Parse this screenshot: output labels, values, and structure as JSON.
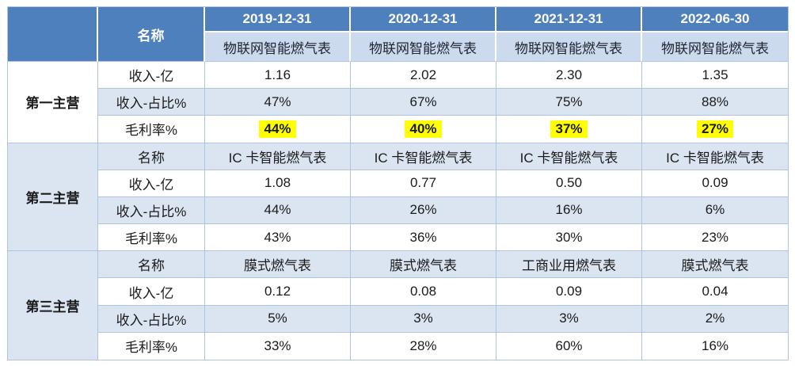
{
  "colors": {
    "blue": "#4e80bd",
    "tint1": "#dbe5f2",
    "tint2": "#cbdaed",
    "line": "#aec5e0",
    "yellow": "#ffff00",
    "text": "#1a1a1a"
  },
  "header": {
    "name_label": "名称",
    "dates": [
      "2019-12-31",
      "2020-12-31",
      "2021-12-31",
      "2022-06-30"
    ],
    "products": [
      "物联网智能燃气表",
      "物联网智能燃气表",
      "物联网智能燃气表",
      "物联网智能燃气表"
    ]
  },
  "groups": [
    {
      "label": "第一主营",
      "rows": [
        {
          "label": "收入-亿",
          "values": [
            "1.16",
            "2.02",
            "2.30",
            "1.35"
          ]
        },
        {
          "label": "收入-占比%",
          "values": [
            "47%",
            "67%",
            "75%",
            "88%"
          ]
        },
        {
          "label": "毛利率%",
          "values": [
            "44%",
            "40%",
            "37%",
            "27%"
          ],
          "highlight": true
        }
      ]
    },
    {
      "label": "第二主营",
      "rows": [
        {
          "label": "名称",
          "values": [
            "IC 卡智能燃气表",
            "IC 卡智能燃气表",
            "IC 卡智能燃气表",
            "IC 卡智能燃气表"
          ]
        },
        {
          "label": "收入-亿",
          "values": [
            "1.08",
            "0.77",
            "0.50",
            "0.09"
          ]
        },
        {
          "label": "收入-占比%",
          "values": [
            "44%",
            "26%",
            "16%",
            "6%"
          ]
        },
        {
          "label": "毛利率%",
          "values": [
            "43%",
            "36%",
            "30%",
            "23%"
          ]
        }
      ]
    },
    {
      "label": "第三主营",
      "rows": [
        {
          "label": "名称",
          "values": [
            "膜式燃气表",
            "膜式燃气表",
            "工商业用燃气表",
            "膜式燃气表"
          ]
        },
        {
          "label": "收入-亿",
          "values": [
            "0.12",
            "0.08",
            "0.09",
            "0.04"
          ]
        },
        {
          "label": "收入-占比%",
          "values": [
            "5%",
            "3%",
            "3%",
            "2%"
          ]
        },
        {
          "label": "毛利率%",
          "values": [
            "33%",
            "28%",
            "60%",
            "16%"
          ]
        }
      ]
    }
  ]
}
